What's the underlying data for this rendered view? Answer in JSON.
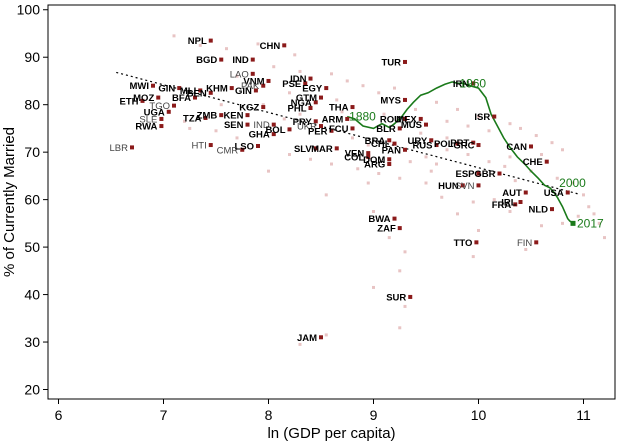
{
  "chart_data": {
    "type": "scatter",
    "xlabel": "ln (GDP per capita)",
    "ylabel": "% of Currently Married",
    "xlim": [
      5.9,
      11.3
    ],
    "ylim": [
      18,
      101
    ],
    "xticks": [
      "6",
      "7",
      "8",
      "9",
      "10",
      "11"
    ],
    "yticks": [
      "20",
      "30",
      "40",
      "50",
      "60",
      "70",
      "80",
      "90",
      "100"
    ],
    "grid": false,
    "colors": {
      "marker": "#8b1a1a",
      "background_dot": "#e8c4c4",
      "us_line": "#1a7a1a",
      "fit_line": "#000000"
    },
    "fit_line": {
      "x": [
        6.55,
        10.95
      ],
      "y": [
        86.8,
        61.2
      ]
    },
    "countries": [
      {
        "label": "NPL",
        "x": 7.45,
        "y": 93.5,
        "style": "bold"
      },
      {
        "label": "CHN",
        "x": 8.15,
        "y": 92.5,
        "style": "bold"
      },
      {
        "label": "BGD",
        "x": 7.55,
        "y": 89.5,
        "style": "bold"
      },
      {
        "label": "IND",
        "x": 7.85,
        "y": 89.5,
        "style": "bold"
      },
      {
        "label": "TUR",
        "x": 9.3,
        "y": 89.0,
        "style": "bold"
      },
      {
        "label": "LAO",
        "x": 7.85,
        "y": 86.5,
        "style": "gray"
      },
      {
        "label": "IDN",
        "x": 8.4,
        "y": 85.5,
        "style": "bold"
      },
      {
        "label": "VNM",
        "x": 8.0,
        "y": 85.0,
        "style": "bold"
      },
      {
        "label": "PSE",
        "x": 8.35,
        "y": 84.5,
        "style": "bold"
      },
      {
        "label": "EGY",
        "x": 8.55,
        "y": 83.5,
        "style": "bold"
      },
      {
        "label": "KHM",
        "x": 7.65,
        "y": 83.5,
        "style": "bold"
      },
      {
        "label": "PAK",
        "x": 7.95,
        "y": 84.0,
        "style": "gray"
      },
      {
        "label": "GIN",
        "x": 7.15,
        "y": 83.5,
        "style": "bold"
      },
      {
        "label": "MWI",
        "x": 6.9,
        "y": 84.0,
        "style": "bold"
      },
      {
        "label": "MLI",
        "x": 7.35,
        "y": 83.0,
        "style": "bold"
      },
      {
        "label": "BEN",
        "x": 7.45,
        "y": 82.5,
        "style": "bold"
      },
      {
        "label": "GIN",
        "x": 7.88,
        "y": 83.0,
        "style": "bold"
      },
      {
        "label": "BFA",
        "x": 7.3,
        "y": 81.5,
        "style": "bold"
      },
      {
        "label": "MOZ",
        "x": 6.95,
        "y": 81.5,
        "style": "bold"
      },
      {
        "label": "ETH",
        "x": 6.8,
        "y": 80.8,
        "style": "bold"
      },
      {
        "label": "GTM",
        "x": 8.5,
        "y": 81.5,
        "style": "bold"
      },
      {
        "label": "NGA",
        "x": 8.45,
        "y": 80.5,
        "style": "bold"
      },
      {
        "label": "IRN",
        "x": 9.95,
        "y": 84.5,
        "style": "bold"
      },
      {
        "label": "MYS",
        "x": 9.3,
        "y": 81.0,
        "style": "bold"
      },
      {
        "label": "TGO",
        "x": 7.1,
        "y": 79.8,
        "style": "gray"
      },
      {
        "label": "UGA",
        "x": 7.05,
        "y": 78.5,
        "style": "bold"
      },
      {
        "label": "ZMB",
        "x": 7.55,
        "y": 77.8,
        "style": "bold"
      },
      {
        "label": "KEN",
        "x": 7.8,
        "y": 77.8,
        "style": "bold"
      },
      {
        "label": "KGZ",
        "x": 7.95,
        "y": 79.5,
        "style": "bold"
      },
      {
        "label": "TZA",
        "x": 7.4,
        "y": 77.2,
        "style": "bold"
      },
      {
        "label": "PHL",
        "x": 8.4,
        "y": 79.3,
        "style": "bold"
      },
      {
        "label": "THA",
        "x": 8.8,
        "y": 79.5,
        "style": "bold"
      },
      {
        "label": "SLE",
        "x": 6.98,
        "y": 77.0,
        "style": "gray"
      },
      {
        "label": "RWA",
        "x": 6.98,
        "y": 75.5,
        "style": "bold"
      },
      {
        "label": "SEN",
        "x": 7.8,
        "y": 75.8,
        "style": "bold"
      },
      {
        "label": "IND",
        "x": 8.05,
        "y": 75.8,
        "style": "gray"
      },
      {
        "label": "BOL",
        "x": 8.2,
        "y": 74.8,
        "style": "bold"
      },
      {
        "label": "UKR",
        "x": 8.5,
        "y": 75.5,
        "style": "gray"
      },
      {
        "label": "PRY",
        "x": 8.45,
        "y": 76.5,
        "style": "bold"
      },
      {
        "label": "ARM",
        "x": 8.75,
        "y": 77.0,
        "style": "bold"
      },
      {
        "label": "FCU",
        "x": 8.8,
        "y": 75.0,
        "style": "bold"
      },
      {
        "label": "PER",
        "x": 8.6,
        "y": 74.5,
        "style": "bold"
      },
      {
        "label": "ROU",
        "x": 9.3,
        "y": 77.0,
        "style": "bold"
      },
      {
        "label": "MEX",
        "x": 9.45,
        "y": 77.0,
        "style": "bold"
      },
      {
        "label": "MUS",
        "x": 9.5,
        "y": 75.8,
        "style": "bold"
      },
      {
        "label": "BLR",
        "x": 9.25,
        "y": 75.0,
        "style": "bold"
      },
      {
        "label": "ISR",
        "x": 10.15,
        "y": 77.5,
        "style": "bold"
      },
      {
        "label": "GHA",
        "x": 8.05,
        "y": 73.8,
        "style": "bold"
      },
      {
        "label": "BRA",
        "x": 9.15,
        "y": 72.5,
        "style": "bold"
      },
      {
        "label": "URY",
        "x": 9.55,
        "y": 72.5,
        "style": "bold"
      },
      {
        "label": "RUS",
        "x": 9.6,
        "y": 71.5,
        "style": "bold"
      },
      {
        "label": "POL",
        "x": 9.8,
        "y": 71.8,
        "style": "bold"
      },
      {
        "label": "PRT",
        "x": 9.95,
        "y": 72.0,
        "style": "bold"
      },
      {
        "label": "GRC",
        "x": 10.0,
        "y": 71.5,
        "style": "bold"
      },
      {
        "label": "CAN",
        "x": 10.5,
        "y": 71.2,
        "style": "bold"
      },
      {
        "label": "HTI",
        "x": 7.45,
        "y": 71.5,
        "style": "gray"
      },
      {
        "label": "LBR",
        "x": 6.7,
        "y": 71.0,
        "style": "gray"
      },
      {
        "label": "LSO",
        "x": 7.9,
        "y": 71.3,
        "style": "bold"
      },
      {
        "label": "CMR",
        "x": 7.75,
        "y": 70.5,
        "style": "gray"
      },
      {
        "label": "SLV",
        "x": 8.45,
        "y": 70.8,
        "style": "bold"
      },
      {
        "label": "MAR",
        "x": 8.65,
        "y": 70.8,
        "style": "bold"
      },
      {
        "label": "CHL",
        "x": 9.2,
        "y": 71.8,
        "style": "bold"
      },
      {
        "label": "PAN",
        "x": 9.3,
        "y": 70.5,
        "style": "bold"
      },
      {
        "label": "VEN",
        "x": 8.95,
        "y": 69.8,
        "style": "bold"
      },
      {
        "label": "COL",
        "x": 8.95,
        "y": 69.0,
        "style": "bold"
      },
      {
        "label": "DOM",
        "x": 9.15,
        "y": 68.5,
        "style": "bold"
      },
      {
        "label": "ARG",
        "x": 9.15,
        "y": 67.5,
        "style": "bold"
      },
      {
        "label": "CHE",
        "x": 10.65,
        "y": 68.0,
        "style": "bold"
      },
      {
        "label": "ESP",
        "x": 10.0,
        "y": 65.5,
        "style": "bold"
      },
      {
        "label": "GBR",
        "x": 10.2,
        "y": 65.5,
        "style": "bold"
      },
      {
        "label": "HUN",
        "x": 9.85,
        "y": 63.0,
        "style": "bold"
      },
      {
        "label": "SVN",
        "x": 10.0,
        "y": 63.0,
        "style": "gray"
      },
      {
        "label": "AUT",
        "x": 10.45,
        "y": 61.5,
        "style": "bold"
      },
      {
        "label": "USA",
        "x": 10.85,
        "y": 61.5,
        "style": "bold"
      },
      {
        "label": "FRA",
        "x": 10.35,
        "y": 59.0,
        "style": "bold"
      },
      {
        "label": "IRL",
        "x": 10.4,
        "y": 59.5,
        "style": "bold"
      },
      {
        "label": "NLD",
        "x": 10.7,
        "y": 58.0,
        "style": "bold"
      },
      {
        "label": "BWA",
        "x": 9.2,
        "y": 56.0,
        "style": "bold"
      },
      {
        "label": "ZAF",
        "x": 9.25,
        "y": 54.0,
        "style": "bold"
      },
      {
        "label": "TTO",
        "x": 9.98,
        "y": 51.0,
        "style": "bold"
      },
      {
        "label": "FIN",
        "x": 10.55,
        "y": 51.0,
        "style": "gray"
      },
      {
        "label": "SUR",
        "x": 9.35,
        "y": 39.5,
        "style": "bold"
      },
      {
        "label": "JAM",
        "x": 8.5,
        "y": 31.0,
        "style": "bold"
      }
    ],
    "background_points": [
      [
        7.1,
        94.5
      ],
      [
        7.35,
        92.5
      ],
      [
        7.6,
        91.8
      ],
      [
        7.9,
        92.8
      ],
      [
        8.25,
        90.5
      ],
      [
        8.05,
        88.0
      ],
      [
        8.3,
        87.0
      ],
      [
        8.6,
        86.5
      ],
      [
        7.7,
        86.0
      ],
      [
        8.75,
        85.0
      ],
      [
        8.9,
        84.0
      ],
      [
        9.05,
        82.5
      ],
      [
        9.2,
        83.5
      ],
      [
        8.2,
        82.5
      ],
      [
        7.95,
        80.0
      ],
      [
        8.65,
        81.0
      ],
      [
        8.3,
        78.0
      ],
      [
        8.15,
        77.0
      ],
      [
        8.7,
        78.5
      ],
      [
        9.1,
        78.0
      ],
      [
        9.4,
        79.0
      ],
      [
        9.6,
        80.5
      ],
      [
        9.8,
        79.0
      ],
      [
        10.0,
        77.5
      ],
      [
        10.3,
        76.0
      ],
      [
        10.4,
        75.0
      ],
      [
        9.7,
        76.5
      ],
      [
        9.9,
        75.5
      ],
      [
        10.1,
        74.5
      ],
      [
        10.55,
        73.5
      ],
      [
        10.7,
        72.0
      ],
      [
        10.8,
        70.5
      ],
      [
        10.6,
        69.5
      ],
      [
        10.3,
        69.0
      ],
      [
        10.1,
        68.0
      ],
      [
        9.9,
        69.5
      ],
      [
        9.7,
        70.5
      ],
      [
        9.5,
        69.0
      ],
      [
        9.35,
        68.0
      ],
      [
        9.6,
        67.5
      ],
      [
        10.25,
        67.0
      ],
      [
        10.5,
        66.0
      ],
      [
        10.75,
        64.5
      ],
      [
        10.9,
        63.5
      ],
      [
        11.0,
        61.0
      ],
      [
        11.05,
        58.5
      ],
      [
        11.1,
        57.0
      ],
      [
        11.15,
        55.0
      ],
      [
        11.2,
        52.0
      ],
      [
        10.95,
        56.5
      ],
      [
        10.8,
        55.0
      ],
      [
        10.6,
        54.5
      ],
      [
        10.3,
        57.5
      ],
      [
        10.15,
        60.0
      ],
      [
        9.95,
        59.5
      ],
      [
        9.8,
        57.0
      ],
      [
        9.65,
        60.5
      ],
      [
        9.5,
        63.5
      ],
      [
        9.25,
        64.5
      ],
      [
        9.05,
        65.5
      ],
      [
        8.85,
        66.5
      ],
      [
        8.6,
        67.5
      ],
      [
        8.4,
        68.5
      ],
      [
        8.2,
        69.5
      ],
      [
        8.0,
        66.0
      ],
      [
        7.7,
        73.0
      ],
      [
        7.5,
        74.5
      ],
      [
        7.25,
        75.0
      ],
      [
        7.2,
        76.5
      ],
      [
        7.55,
        80.0
      ],
      [
        8.55,
        61.0
      ],
      [
        8.95,
        63.5
      ],
      [
        9.0,
        57.5
      ],
      [
        9.15,
        52.0
      ],
      [
        9.3,
        49.0
      ],
      [
        9.25,
        45.0
      ],
      [
        9.0,
        41.5
      ],
      [
        9.3,
        37.5
      ],
      [
        9.25,
        33.0
      ],
      [
        8.55,
        31.5
      ],
      [
        8.3,
        29.5
      ],
      [
        9.95,
        48.0
      ],
      [
        10.45,
        49.5
      ],
      [
        10.0,
        53.5
      ],
      [
        9.55,
        66.0
      ],
      [
        10.35,
        64.0
      ],
      [
        8.8,
        73.0
      ],
      [
        8.95,
        71.5
      ],
      [
        9.45,
        74.0
      ],
      [
        9.7,
        73.0
      ]
    ],
    "us_series": {
      "name": "USA",
      "x": [
        8.75,
        8.82,
        8.9,
        9.0,
        9.08,
        9.15,
        9.2,
        9.27,
        9.32,
        9.38,
        9.45,
        9.52,
        9.6,
        9.68,
        9.75,
        9.8,
        9.85,
        9.92,
        10.0,
        10.07,
        10.12,
        10.18,
        10.24,
        10.3,
        10.37,
        10.44,
        10.5,
        10.57,
        10.63,
        10.68,
        10.72,
        10.75,
        10.8,
        10.85,
        10.87,
        10.9
      ],
      "y": [
        77.5,
        77.0,
        75.5,
        75.0,
        76.0,
        75.2,
        76.0,
        77.5,
        79.0,
        80.5,
        82.0,
        82.5,
        83.5,
        84.3,
        84.8,
        84.5,
        84.5,
        84.0,
        83.5,
        81.5,
        78.0,
        75.5,
        73.0,
        71.0,
        69.0,
        67.5,
        66.0,
        64.5,
        63.0,
        62.5,
        61.5,
        60.5,
        58.5,
        56.0,
        55.5,
        55.0
      ]
    },
    "us_year_labels": [
      {
        "text": "1880",
        "x": 8.73,
        "y": 77.5
      },
      {
        "text": "1960",
        "x": 9.78,
        "y": 84.5
      },
      {
        "text": "2000",
        "x": 10.73,
        "y": 63.5
      },
      {
        "text": "2017",
        "x": 10.9,
        "y": 55.0
      }
    ]
  }
}
